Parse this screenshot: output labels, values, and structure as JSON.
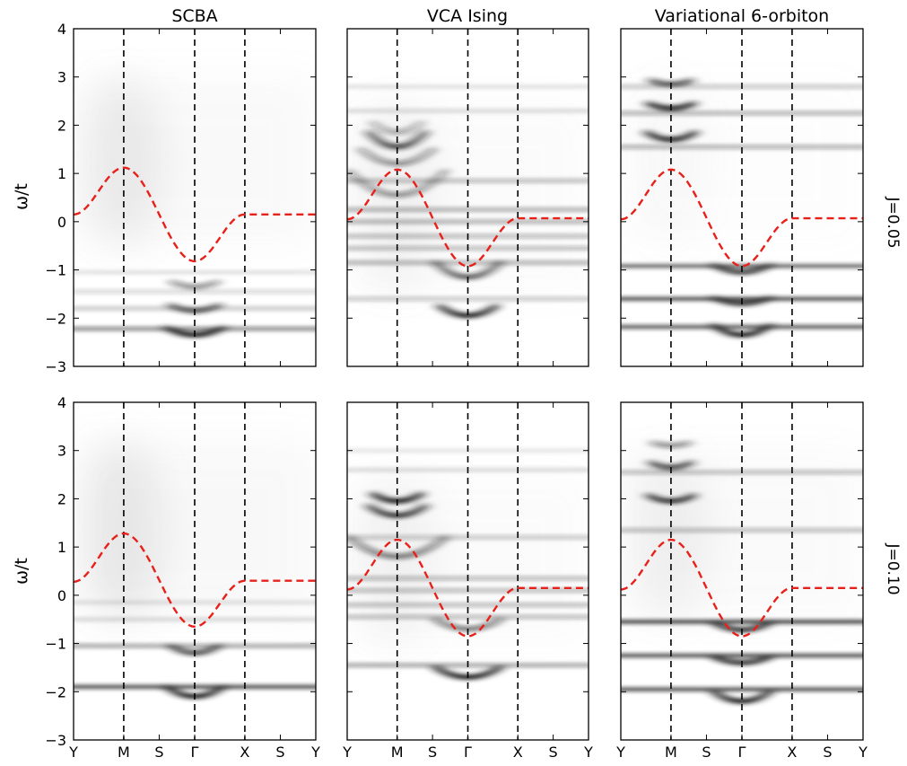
{
  "colors": {
    "band": "#1a1a1a",
    "background_haze": "#9a9a9a",
    "dispersion_line": "#e8201a",
    "symmetry_line": "#000000",
    "frame": "#000000"
  },
  "chart_data": {
    "type": "heatmap",
    "description_kind": "spectral function panels, grayscale intensity with red dashed dispersion",
    "column_titles": [
      "SCBA",
      "VCA Ising",
      "Variational 6-orbiton"
    ],
    "row_labels": [
      "J=0.05",
      "J=0.10"
    ],
    "ylabel": "ω/t",
    "ylim": [
      -3,
      4
    ],
    "yticks": [
      -3,
      -2,
      -1,
      0,
      1,
      2,
      3,
      4
    ],
    "x_path": [
      "Y",
      "M",
      "S",
      "Γ",
      "X",
      "S",
      "Y"
    ],
    "x_positions": [
      0,
      1,
      1.7071,
      2.4142,
      3.4142,
      4.1213,
      4.8284
    ],
    "symmetry_lines_at": [
      "M",
      "Γ",
      "X"
    ],
    "panels": [
      {
        "title": "SCBA",
        "row_label": "J=0.05",
        "dispersion": {
          "Y": 0.15,
          "M": 1.12,
          "Γ": -0.82,
          "X": 0.15
        },
        "haze": {
          "center": "M",
          "ymin": -0.5,
          "ymax": 3.0,
          "strength": 0.16
        },
        "bands": [
          {
            "energy": -2.22,
            "strength": 0.5,
            "flat": true
          },
          {
            "energy": -2.35,
            "strength": 0.95,
            "curvature": 0.15,
            "center": "Γ",
            "width": 0.35
          },
          {
            "energy": -1.8,
            "strength": 0.25,
            "flat": true
          },
          {
            "energy": -1.85,
            "strength": 0.7,
            "curvature": 0.12,
            "center": "Γ",
            "width": 0.3
          },
          {
            "energy": -1.45,
            "strength": 0.18,
            "flat": true
          },
          {
            "energy": -1.35,
            "strength": 0.45,
            "curvature": 0.1,
            "center": "Γ",
            "width": 0.28
          },
          {
            "energy": -1.05,
            "strength": 0.12,
            "flat": true
          }
        ]
      },
      {
        "title": "VCA Ising",
        "row_label": "J=0.05",
        "dispersion": {
          "Y": 0.05,
          "M": 1.08,
          "Γ": -0.92,
          "X": 0.07
        },
        "haze": {
          "center": "M",
          "ymin": -1.5,
          "ymax": 2.5,
          "strength": 0.1
        },
        "bands": [
          {
            "energy": -1.95,
            "strength": 0.95,
            "curvature": 0.2,
            "center": "Γ",
            "width": 0.35
          },
          {
            "energy": -1.6,
            "strength": 0.25,
            "flat": true
          },
          {
            "energy": -1.15,
            "strength": 0.7,
            "curvature": 0.3,
            "center": "Γ",
            "width": 0.4
          },
          {
            "energy": -0.85,
            "strength": 0.35,
            "flat": true
          },
          {
            "energy": -0.55,
            "strength": 0.3,
            "flat": true
          },
          {
            "energy": -0.3,
            "strength": 0.3,
            "flat": true
          },
          {
            "energy": 0.0,
            "strength": 0.35,
            "flat": true
          },
          {
            "energy": 0.25,
            "strength": 0.35,
            "flat": true
          },
          {
            "energy": 0.55,
            "strength": 0.45,
            "curvature": 0.5,
            "center": "M",
            "width": 0.6
          },
          {
            "energy": 0.85,
            "strength": 0.3,
            "flat": true
          },
          {
            "energy": 1.2,
            "strength": 0.45,
            "curvature": 0.3,
            "center": "M",
            "width": 0.45
          },
          {
            "energy": 1.55,
            "strength": 0.8,
            "curvature": 0.3,
            "center": "M",
            "width": 0.35
          },
          {
            "energy": 1.85,
            "strength": 0.35,
            "curvature": 0.2,
            "center": "M",
            "width": 0.3
          },
          {
            "energy": 2.3,
            "strength": 0.15,
            "flat": true
          },
          {
            "energy": 2.8,
            "strength": 0.12,
            "flat": true
          }
        ]
      },
      {
        "title": "Variational 6-orbiton",
        "row_label": "J=0.05",
        "dispersion": {
          "Y": 0.05,
          "M": 1.08,
          "Γ": -0.92,
          "X": 0.07
        },
        "haze": {
          "center": "M",
          "ymin": -0.5,
          "ymax": 3.0,
          "strength": 0.05
        },
        "bands": [
          {
            "energy": -2.18,
            "strength": 0.7,
            "flat": true
          },
          {
            "energy": -2.35,
            "strength": 0.95,
            "curvature": 0.2,
            "center": "Γ",
            "width": 0.35
          },
          {
            "energy": -1.6,
            "strength": 0.75,
            "flat": true
          },
          {
            "energy": -1.7,
            "strength": 0.8,
            "curvature": 0.12,
            "center": "Γ",
            "width": 0.35
          },
          {
            "energy": -0.92,
            "strength": 0.65,
            "flat": true
          },
          {
            "energy": -1.05,
            "strength": 0.8,
            "curvature": 0.15,
            "center": "Γ",
            "width": 0.35
          },
          {
            "energy": 1.55,
            "strength": 0.35,
            "flat": true
          },
          {
            "energy": 1.7,
            "strength": 0.9,
            "curvature": 0.15,
            "center": "M",
            "width": 0.3
          },
          {
            "energy": 2.25,
            "strength": 0.35,
            "flat": true
          },
          {
            "energy": 2.35,
            "strength": 0.9,
            "curvature": 0.1,
            "center": "M",
            "width": 0.28
          },
          {
            "energy": 2.8,
            "strength": 0.25,
            "flat": true
          },
          {
            "energy": 2.85,
            "strength": 0.7,
            "curvature": 0.08,
            "center": "M",
            "width": 0.25
          }
        ]
      },
      {
        "title": "SCBA",
        "row_label": "J=0.10",
        "dispersion": {
          "Y": 0.28,
          "M": 1.28,
          "Γ": -0.65,
          "X": 0.3
        },
        "haze": {
          "center": "M",
          "ymin": -0.5,
          "ymax": 3.2,
          "strength": 0.18
        },
        "bands": [
          {
            "energy": -1.9,
            "strength": 0.75,
            "flat": true
          },
          {
            "energy": -2.1,
            "strength": 0.95,
            "curvature": 0.2,
            "center": "Γ",
            "width": 0.35
          },
          {
            "energy": -1.05,
            "strength": 0.4,
            "flat": true
          },
          {
            "energy": -1.2,
            "strength": 0.75,
            "curvature": 0.15,
            "center": "Γ",
            "width": 0.3
          },
          {
            "energy": -0.5,
            "strength": 0.15,
            "flat": true
          },
          {
            "energy": -0.15,
            "strength": 0.12,
            "flat": true
          }
        ]
      },
      {
        "title": "VCA Ising",
        "row_label": "J=0.10",
        "dispersion": {
          "Y": 0.12,
          "M": 1.15,
          "Γ": -0.85,
          "X": 0.15
        },
        "haze": {
          "center": "M",
          "ymin": -1.0,
          "ymax": 2.5,
          "strength": 0.1
        },
        "bands": [
          {
            "energy": -1.7,
            "strength": 0.95,
            "curvature": 0.2,
            "center": "Γ",
            "width": 0.4
          },
          {
            "energy": -1.45,
            "strength": 0.4,
            "flat": true
          },
          {
            "energy": -0.7,
            "strength": 0.55,
            "curvature": 0.2,
            "center": "Γ",
            "width": 0.4
          },
          {
            "energy": -0.45,
            "strength": 0.3,
            "flat": true
          },
          {
            "energy": -0.2,
            "strength": 0.3,
            "flat": true
          },
          {
            "energy": 0.1,
            "strength": 0.3,
            "flat": true
          },
          {
            "energy": 0.35,
            "strength": 0.3,
            "flat": true
          },
          {
            "energy": 0.8,
            "strength": 0.55,
            "curvature": 0.4,
            "center": "M",
            "width": 0.6
          },
          {
            "energy": 1.2,
            "strength": 0.25,
            "flat": true
          },
          {
            "energy": 1.65,
            "strength": 0.85,
            "curvature": 0.2,
            "center": "M",
            "width": 0.35
          },
          {
            "energy": 1.95,
            "strength": 0.95,
            "curvature": 0.15,
            "center": "M",
            "width": 0.3
          },
          {
            "energy": 2.6,
            "strength": 0.15,
            "flat": true
          },
          {
            "energy": 3.0,
            "strength": 0.1,
            "flat": true
          }
        ]
      },
      {
        "title": "Variational 6-orbiton",
        "row_label": "J=0.10",
        "dispersion": {
          "Y": 0.12,
          "M": 1.15,
          "Γ": -0.85,
          "X": 0.15
        },
        "haze": {
          "center": "M",
          "ymin": -0.5,
          "ymax": 3.0,
          "strength": 0.12
        },
        "bands": [
          {
            "energy": -1.95,
            "strength": 0.75,
            "flat": true
          },
          {
            "energy": -2.2,
            "strength": 0.95,
            "curvature": 0.2,
            "center": "Γ",
            "width": 0.35
          },
          {
            "energy": -1.25,
            "strength": 0.75,
            "flat": true
          },
          {
            "energy": -1.4,
            "strength": 0.85,
            "curvature": 0.12,
            "center": "Γ",
            "width": 0.35
          },
          {
            "energy": -0.55,
            "strength": 0.8,
            "flat": true
          },
          {
            "energy": -0.72,
            "strength": 0.85,
            "curvature": 0.15,
            "center": "Γ",
            "width": 0.35
          },
          {
            "energy": 1.35,
            "strength": 0.3,
            "flat": true
          },
          {
            "energy": 1.95,
            "strength": 0.85,
            "curvature": 0.12,
            "center": "M",
            "width": 0.28
          },
          {
            "energy": 2.55,
            "strength": 0.3,
            "flat": true
          },
          {
            "energy": 2.65,
            "strength": 0.75,
            "curvature": 0.1,
            "center": "M",
            "width": 0.25
          },
          {
            "energy": 3.1,
            "strength": 0.45,
            "curvature": 0.06,
            "center": "M",
            "width": 0.22
          }
        ]
      }
    ]
  }
}
